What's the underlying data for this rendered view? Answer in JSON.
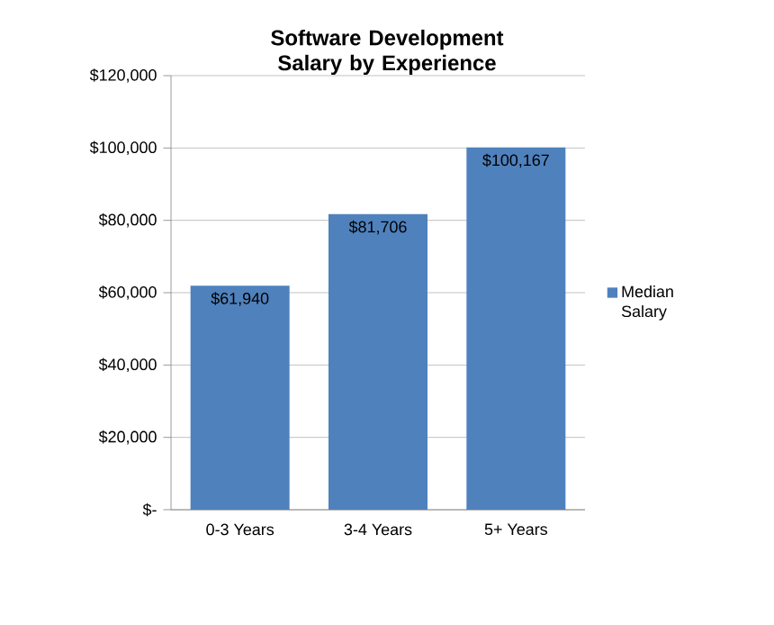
{
  "chart_data": {
    "type": "bar",
    "title": "Software Development Salary by Experience",
    "categories": [
      "0-3 Years",
      "3-4 Years",
      "5+ Years"
    ],
    "series": [
      {
        "name": "Median Salary",
        "color": "#4f81bd",
        "values": [
          61940,
          81706,
          100167
        ],
        "value_labels": [
          "$61,940",
          "$81,706",
          "$100,167"
        ]
      }
    ],
    "ylim": [
      0,
      120000
    ],
    "yticks": [
      {
        "value": 0,
        "label": "$-"
      },
      {
        "value": 20000,
        "label": "$20,000"
      },
      {
        "value": 40000,
        "label": "$40,000"
      },
      {
        "value": 60000,
        "label": "$60,000"
      },
      {
        "value": 80000,
        "label": "$80,000"
      },
      {
        "value": 100000,
        "label": "$100,000"
      },
      {
        "value": 120000,
        "label": "$120,000"
      }
    ],
    "grid": "y",
    "legend": "right"
  }
}
